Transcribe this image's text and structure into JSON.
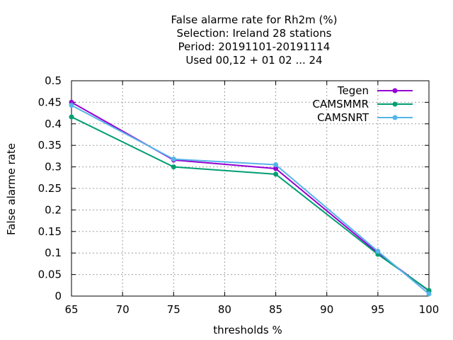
{
  "chart_data": {
    "type": "line",
    "title_lines": [
      "False alarme rate  for Rh2m (%)",
      "Selection: Ireland     28 stations",
      "Period: 20191101-20191114",
      "Used  00,12  + 01 02 ... 24"
    ],
    "xlabel": "thresholds %",
    "ylabel": "False alarme rate",
    "xlim": [
      65,
      100
    ],
    "ylim": [
      0,
      0.5
    ],
    "xticks": [
      "65",
      "70",
      "75",
      "80",
      "85",
      "90",
      "95",
      "100"
    ],
    "yticks": [
      "0",
      "0.05",
      "0.1",
      "0.15",
      "0.2",
      "0.25",
      "0.3",
      "0.35",
      "0.4",
      "0.45",
      "0.5"
    ],
    "grid": true,
    "legend_position": "top-right",
    "x": [
      65,
      75,
      85,
      95,
      100
    ],
    "series": [
      {
        "name": "Tegen",
        "color": "#9400d3",
        "values": [
          0.45,
          0.316,
          0.296,
          0.1,
          0.012
        ]
      },
      {
        "name": "CAMSMMR",
        "color": "#009e73",
        "values": [
          0.416,
          0.3,
          0.283,
          0.097,
          0.013
        ]
      },
      {
        "name": "CAMSNRT",
        "color": "#56b4e9",
        "values": [
          0.443,
          0.318,
          0.305,
          0.104,
          0.005
        ]
      }
    ]
  }
}
